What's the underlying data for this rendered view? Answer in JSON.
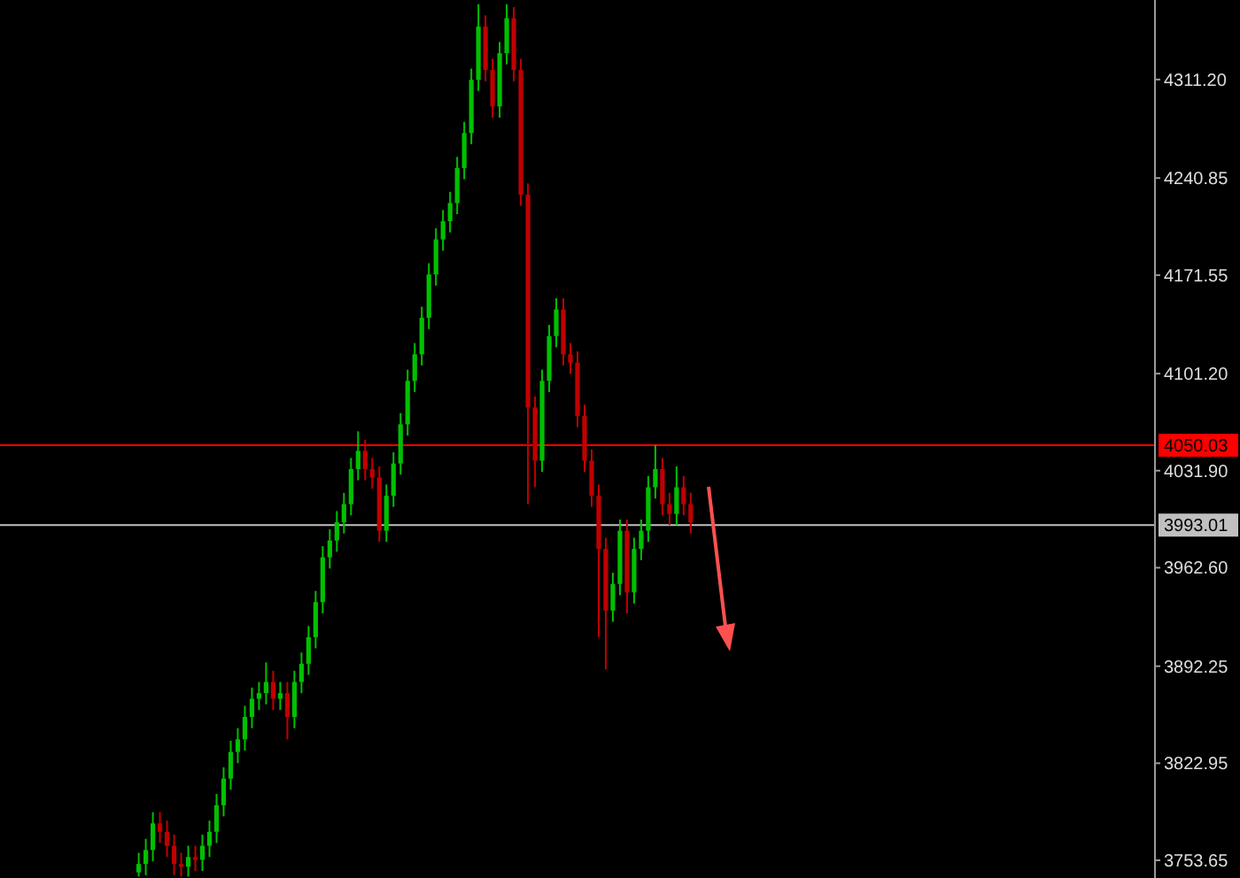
{
  "chart_data": {
    "type": "candlestick",
    "tick_labels": "y",
    "categories": [
      null,
      null,
      null,
      null,
      null,
      null,
      null,
      null,
      null,
      null,
      null,
      null,
      null,
      null,
      null,
      null,
      null,
      null,
      null,
      null,
      null,
      null,
      null,
      null,
      null,
      null,
      null,
      null,
      null,
      null,
      null,
      null,
      null,
      null,
      null,
      null,
      null,
      null,
      null,
      null,
      null,
      null,
      null,
      null,
      null,
      null,
      null,
      null,
      null,
      null,
      null,
      null,
      null,
      null,
      null,
      null,
      null,
      null,
      null,
      null,
      null,
      null,
      null,
      null,
      null,
      null,
      null,
      null,
      null,
      null,
      null,
      null,
      null,
      null,
      null,
      null,
      null,
      null,
      null,
      null,
      null,
      null,
      null,
      null,
      null,
      null,
      null,
      null,
      null,
      null,
      null,
      null,
      null,
      null,
      null,
      null,
      null,
      null,
      null,
      null,
      null,
      null,
      null,
      null,
      null,
      null,
      null,
      null,
      null,
      null,
      null,
      null,
      null,
      null,
      null,
      null,
      null,
      null,
      null,
      null,
      null,
      null,
      null,
      null,
      null,
      null,
      null,
      null,
      null,
      null,
      null,
      null,
      null,
      null,
      null,
      null,
      null,
      null,
      null,
      null,
      null,
      null,
      null,
      null,
      null,
      null,
      null,
      null,
      null,
      null,
      null,
      null,
      null,
      null,
      null,
      null,
      null,
      null,
      null,
      null,
      null,
      null,
      null
    ],
    "ohlc": [
      null,
      null,
      null,
      null,
      null,
      null,
      null,
      null,
      null,
      null,
      null,
      null,
      null,
      null,
      null,
      null,
      null,
      null,
      null,
      [
        3745,
        3759,
        3742,
        3751
      ],
      [
        3751,
        3769,
        3743,
        3761
      ],
      [
        3761,
        3788,
        3753,
        3780
      ],
      [
        3780,
        3788,
        3766,
        3774
      ],
      [
        3774,
        3782,
        3756,
        3764
      ],
      [
        3764,
        3772,
        3743,
        3751
      ],
      [
        3751,
        3759,
        3742,
        3749
      ],
      [
        3749,
        3764,
        3742,
        3756
      ],
      [
        3756,
        3764,
        3746,
        3754
      ],
      [
        3754,
        3772,
        3746,
        3764
      ],
      [
        3764,
        3782,
        3756,
        3774
      ],
      [
        3774,
        3801,
        3766,
        3793
      ],
      [
        3793,
        3820,
        3785,
        3812
      ],
      [
        3812,
        3839,
        3804,
        3831
      ],
      [
        3831,
        3848,
        3823,
        3840
      ],
      [
        3840,
        3864,
        3832,
        3856
      ],
      [
        3856,
        3877,
        3848,
        3869
      ],
      [
        3869,
        3881,
        3861,
        3873
      ],
      [
        3873,
        3895,
        3865,
        3881
      ],
      [
        3881,
        3889,
        3861,
        3869
      ],
      [
        3869,
        3881,
        3861,
        3873
      ],
      [
        3873,
        3881,
        3840,
        3856
      ],
      [
        3856,
        3889,
        3848,
        3881
      ],
      [
        3881,
        3902,
        3873,
        3894
      ],
      [
        3894,
        3921,
        3886,
        3913
      ],
      [
        3913,
        3946,
        3905,
        3938
      ],
      [
        3938,
        3978,
        3930,
        3970
      ],
      [
        3970,
        3990,
        3962,
        3982
      ],
      [
        3982,
        4003,
        3974,
        3995
      ],
      [
        3995,
        4016,
        3987,
        4008
      ],
      [
        4008,
        4041,
        4000,
        4033
      ],
      [
        4033,
        4060,
        4025,
        4046
      ],
      [
        4046,
        4054,
        4025,
        4033
      ],
      [
        4033,
        4041,
        4019,
        4027
      ],
      [
        4027,
        4035,
        3981,
        3989
      ],
      [
        3989,
        4022,
        3981,
        4014
      ],
      [
        4014,
        4045,
        4006,
        4037
      ],
      [
        4037,
        4073,
        4029,
        4065
      ],
      [
        4065,
        4104,
        4057,
        4096
      ],
      [
        4096,
        4123,
        4088,
        4115
      ],
      [
        4115,
        4149,
        4107,
        4141
      ],
      [
        4141,
        4180,
        4133,
        4172
      ],
      [
        4172,
        4205,
        4164,
        4197
      ],
      [
        4197,
        4218,
        4189,
        4210
      ],
      [
        4210,
        4231,
        4202,
        4223
      ],
      [
        4223,
        4256,
        4215,
        4248
      ],
      [
        4248,
        4281,
        4240,
        4273
      ],
      [
        4273,
        4319,
        4265,
        4311
      ],
      [
        4311,
        4365,
        4303,
        4349
      ],
      [
        4349,
        4357,
        4310,
        4318
      ],
      [
        4318,
        4326,
        4284,
        4292
      ],
      [
        4292,
        4338,
        4284,
        4330
      ],
      [
        4330,
        4365,
        4322,
        4355
      ],
      [
        4355,
        4363,
        4310,
        4318
      ],
      [
        4318,
        4326,
        4221,
        4229
      ],
      [
        4229,
        4237,
        4008,
        4077
      ],
      [
        4077,
        4085,
        4020,
        4039
      ],
      [
        4039,
        4104,
        4031,
        4096
      ],
      [
        4096,
        4136,
        4088,
        4128
      ],
      [
        4128,
        4155,
        4120,
        4147
      ],
      [
        4147,
        4155,
        4107,
        4115
      ],
      [
        4115,
        4123,
        4101,
        4109
      ],
      [
        4109,
        4117,
        4063,
        4071
      ],
      [
        4071,
        4079,
        4031,
        4039
      ],
      [
        4039,
        4047,
        4006,
        4014
      ],
      [
        4014,
        4022,
        3913,
        3976
      ],
      [
        3976,
        3984,
        3890,
        3932
      ],
      [
        3932,
        3959,
        3924,
        3951
      ],
      [
        3951,
        3997,
        3943,
        3989
      ],
      [
        3989,
        3997,
        3930,
        3945
      ],
      [
        3945,
        3984,
        3937,
        3976
      ],
      [
        3976,
        3997,
        3968,
        3989
      ],
      [
        3989,
        4028,
        3981,
        4020
      ],
      [
        4020,
        4050,
        4012,
        4033
      ],
      [
        4033,
        4041,
        4000,
        4008
      ],
      [
        4008,
        4016,
        3993,
        4001
      ],
      [
        4001,
        4035,
        3993,
        4020
      ],
      [
        4020,
        4028,
        4000,
        4008
      ],
      [
        4008,
        4016,
        3987,
        3995
      ],
      null,
      null,
      null,
      null,
      null,
      null,
      null,
      null,
      null,
      null,
      null,
      null,
      null,
      null,
      null,
      null,
      null,
      null,
      null,
      null,
      null,
      null,
      null,
      null,
      null,
      null,
      null,
      null,
      null,
      null,
      null,
      null,
      null,
      null,
      null,
      null,
      null,
      null,
      null,
      null,
      null,
      null,
      null,
      null,
      null,
      null,
      null,
      null,
      null,
      null,
      null,
      null,
      null,
      null,
      null,
      null,
      null,
      null,
      null,
      null,
      null,
      null,
      null,
      null,
      null
    ],
    "colors": [
      null,
      null,
      null,
      null,
      null,
      null,
      null,
      null,
      null,
      null,
      null,
      null,
      null,
      null,
      null,
      null,
      null,
      null,
      null,
      "#00c000",
      "#00c000",
      "#00c000",
      "#c00000",
      "#c00000",
      "#c00000",
      "#c00000",
      "#00c000",
      "#c00000",
      "#00c000",
      "#00c000",
      "#00c000",
      "#00c000",
      "#00c000",
      "#00c000",
      "#00c000",
      "#00c000",
      "#00c000",
      "#00c000",
      "#c00000",
      "#00c000",
      "#c00000",
      "#00c000",
      "#00c000",
      "#00c000",
      "#00c000",
      "#00c000",
      "#00c000",
      "#00c000",
      "#00c000",
      "#00c000",
      "#00c000",
      "#c00000",
      "#c00000",
      "#c00000",
      "#00c000",
      "#00c000",
      "#00c000",
      "#00c000",
      "#00c000",
      "#00c000",
      "#00c000",
      "#00c000",
      "#00c000",
      "#00c000",
      "#00c000",
      "#00c000",
      "#00c000",
      "#00c000",
      "#c00000",
      "#c00000",
      "#00c000",
      "#00c000",
      "#c00000",
      "#c00000",
      "#c00000",
      "#c00000",
      "#00c000",
      "#00c000",
      "#00c000",
      "#c00000",
      "#c00000",
      "#c00000",
      "#c00000",
      "#c00000",
      "#c00000",
      "#c00000",
      "#00c000",
      "#00c000",
      "#c00000",
      "#00c000",
      "#00c000",
      "#00c000",
      "#00c000",
      "#c00000",
      "#c00000",
      "#00c000",
      "#c00000",
      "#c00000",
      null,
      null,
      null,
      null,
      null,
      null,
      null,
      null,
      null,
      null,
      null,
      null,
      null,
      null,
      null,
      null,
      null,
      null,
      null,
      null,
      null,
      null,
      null,
      null,
      null,
      null,
      null,
      null,
      null,
      null,
      null,
      null,
      null,
      null,
      null,
      null,
      null,
      null,
      null,
      null,
      null,
      null,
      null,
      null,
      null,
      null,
      null,
      null,
      null,
      null,
      null,
      null,
      null,
      null,
      null,
      null,
      null,
      null,
      null,
      null,
      null,
      null,
      null,
      null,
      null
    ],
    "ylim": [
      3741,
      4368
    ],
    "yticks": [
      {
        "value": 4311.2,
        "label": "4311.20"
      },
      {
        "value": 4240.85,
        "label": "4240.85"
      },
      {
        "value": 4171.55,
        "label": "4171.55"
      },
      {
        "value": 4101.2,
        "label": "4101.20"
      },
      {
        "value": 4031.9,
        "label": "4031.90"
      },
      {
        "value": 3962.6,
        "label": "3962.60"
      },
      {
        "value": 3892.25,
        "label": "3892.25"
      },
      {
        "value": 3822.95,
        "label": "3822.95"
      },
      {
        "value": 3753.65,
        "label": "3753.65"
      }
    ],
    "ref_lines": [
      {
        "axis": "y",
        "value": 4050.03,
        "label": "4050.03",
        "color": "#ff0000"
      },
      {
        "axis": "y",
        "value": 3993.01,
        "label": "3993.01",
        "color": "#c0c0c0"
      }
    ]
  }
}
